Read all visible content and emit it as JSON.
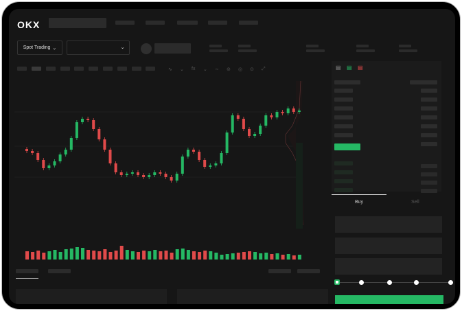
{
  "header": {
    "logo": "OKX"
  },
  "toolbar": {
    "market_type": "Spot Trading",
    "market_type_chevron": "chevron-down-icon",
    "pair_select_chevron": "chevron-down-icon",
    "tool_glyphs": [
      "∿",
      "⌄",
      "fx",
      "⌄",
      "∼",
      "⊘",
      "◎",
      "⊙",
      "⤢"
    ]
  },
  "order_form": {
    "tabs": [
      "Buy",
      "Sell"
    ],
    "active_tab": "Buy",
    "slider_percent": 0
  },
  "colors": {
    "up": "#25b864",
    "down": "#e04a4a",
    "accent": "#25b864",
    "background": "#161616"
  },
  "chart_data": {
    "type": "candlestick",
    "closes": [
      93,
      90,
      80,
      68,
      72,
      78,
      88,
      95,
      112,
      135,
      140,
      138,
      125,
      110,
      95,
      75,
      62,
      58,
      60,
      62,
      58,
      55,
      58,
      62,
      60,
      55,
      50,
      60,
      85,
      95,
      92,
      80,
      70,
      72,
      75,
      90,
      120,
      145,
      140,
      125,
      115,
      118,
      130,
      145,
      142,
      150,
      148,
      155,
      150,
      152
    ],
    "volumes": [
      12,
      11,
      13,
      10,
      12,
      14,
      11,
      15,
      16,
      18,
      17,
      14,
      13,
      12,
      15,
      11,
      13,
      20,
      14,
      12,
      11,
      13,
      12,
      14,
      12,
      13,
      10,
      15,
      16,
      14,
      12,
      11,
      13,
      12,
      10,
      7,
      8,
      9,
      10,
      11,
      12,
      11,
      9,
      10,
      8,
      9,
      7,
      8,
      6,
      7
    ]
  }
}
